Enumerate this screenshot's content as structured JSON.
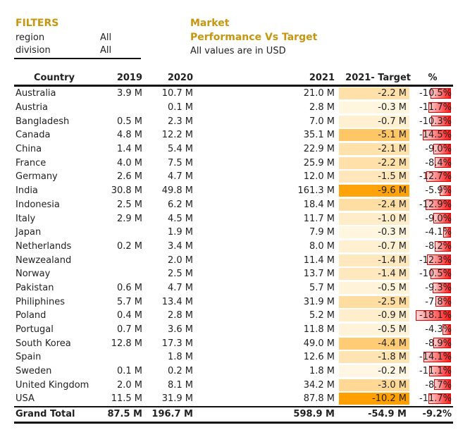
{
  "filters": {
    "title": "FILTERS",
    "rows": [
      {
        "label": "region",
        "value": "All"
      },
      {
        "label": "division",
        "value": "All"
      }
    ]
  },
  "report": {
    "title_line1": "Market",
    "title_line2": "Performance Vs Target",
    "subtitle": "All values are in USD"
  },
  "colors": {
    "title": "#c8960c",
    "target_max": "#ff9f00",
    "target_min": "#fffbee",
    "bar": "#ff1a1a"
  },
  "chart_data": {
    "type": "table",
    "columns": [
      "Country",
      "2019",
      "2020",
      "2021",
      "2021- Target",
      "%"
    ],
    "rows": [
      [
        "Australia",
        "3.9 M",
        "10.7 M",
        "21.0 M",
        "-2.2 M",
        "-10.5%"
      ],
      [
        "Austria",
        "",
        "0.1 M",
        "2.8 M",
        "-0.3 M",
        "-11.7%"
      ],
      [
        "Bangladesh",
        "0.5 M",
        "2.3 M",
        "7.0 M",
        "-0.7 M",
        "-10.3%"
      ],
      [
        "Canada",
        "4.8 M",
        "12.2 M",
        "35.1 M",
        "-5.1 M",
        "-14.5%"
      ],
      [
        "China",
        "1.4 M",
        "5.4 M",
        "22.9 M",
        "-2.1 M",
        "-9.0%"
      ],
      [
        "France",
        "4.0 M",
        "7.5 M",
        "25.9 M",
        "-2.2 M",
        "-8.4%"
      ],
      [
        "Germany",
        "2.6 M",
        "4.7 M",
        "12.0 M",
        "-1.5 M",
        "-12.7%"
      ],
      [
        "India",
        "30.8 M",
        "49.8 M",
        "161.3 M",
        "-9.6 M",
        "-5.9%"
      ],
      [
        "Indonesia",
        "2.5 M",
        "6.2 M",
        "18.4 M",
        "-2.4 M",
        "-12.9%"
      ],
      [
        "Italy",
        "2.9 M",
        "4.5 M",
        "11.7 M",
        "-1.0 M",
        "-9.0%"
      ],
      [
        "Japan",
        "",
        "1.9 M",
        "7.9 M",
        "-0.3 M",
        "-4.1%"
      ],
      [
        "Netherlands",
        "0.2 M",
        "3.4 M",
        "8.0 M",
        "-0.7 M",
        "-8.2%"
      ],
      [
        "Newzealand",
        "",
        "2.0 M",
        "11.4 M",
        "-1.4 M",
        "-12.3%"
      ],
      [
        "Norway",
        "",
        "2.5 M",
        "13.7 M",
        "-1.4 M",
        "-10.5%"
      ],
      [
        "Pakistan",
        "0.6 M",
        "4.7 M",
        "5.7 M",
        "-0.5 M",
        "-9.3%"
      ],
      [
        "Philiphines",
        "5.7 M",
        "13.4 M",
        "31.9 M",
        "-2.5 M",
        "-7.8%"
      ],
      [
        "Poland",
        "0.4 M",
        "2.8 M",
        "5.2 M",
        "-0.9 M",
        "-18.1%"
      ],
      [
        "Portugal",
        "0.7 M",
        "3.6 M",
        "11.8 M",
        "-0.5 M",
        "-4.3%"
      ],
      [
        "South Korea",
        "12.8 M",
        "17.3 M",
        "49.0 M",
        "-4.4 M",
        "-8.9%"
      ],
      [
        "Spain",
        "",
        "1.8 M",
        "12.6 M",
        "-1.8 M",
        "-14.1%"
      ],
      [
        "Sweden",
        "0.1 M",
        "0.2 M",
        "1.8 M",
        "-0.2 M",
        "-11.1%"
      ],
      [
        "United Kingdom",
        "2.0 M",
        "8.1 M",
        "34.2 M",
        "-3.0 M",
        "-8.7%"
      ],
      [
        "USA",
        "11.5 M",
        "31.9 M",
        "87.8 M",
        "-10.2 M",
        "-11.7%"
      ]
    ],
    "total": [
      "Grand Total",
      "87.5 M",
      "196.7 M",
      "598.9 M",
      "-54.9 M",
      "-9.2%"
    ]
  }
}
